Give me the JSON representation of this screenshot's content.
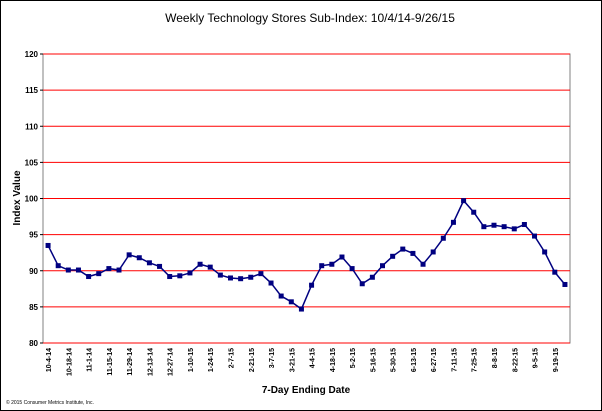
{
  "chart_data": {
    "type": "line",
    "title": "Weekly Technology Stores Sub-Index: 10/4/14-9/26/15",
    "x_label": "7-Day Ending Date",
    "y_label": "Index Value",
    "footnote": "© 2015 Consumer Metrics Institute, Inc.",
    "categories": [
      "10-4-14",
      null,
      "10-18-14",
      null,
      "11-1-14",
      null,
      "11-15-14",
      null,
      "11-29-14",
      null,
      "12-13-14",
      null,
      "12-27-14",
      null,
      "1-10-15",
      null,
      "1-24-15",
      null,
      "2-7-15",
      null,
      "2-21-15",
      null,
      "3-7-15",
      null,
      "3-21-15",
      null,
      "4-4-15",
      null,
      "4-18-15",
      null,
      "5-2-15",
      null,
      "5-16-15",
      null,
      "5-30-15",
      null,
      "6-13-15",
      null,
      "6-27-15",
      null,
      "7-11-15",
      null,
      "7-25-15",
      null,
      "8-8-15",
      null,
      "8-22-15",
      null,
      "9-5-15",
      null,
      "9-19-15",
      null
    ],
    "values": [
      93.5,
      90.7,
      90.1,
      90.1,
      89.2,
      89.6,
      90.3,
      90.1,
      92.2,
      91.8,
      91.1,
      90.6,
      89.2,
      89.3,
      89.7,
      90.9,
      90.5,
      89.4,
      89.0,
      88.9,
      89.1,
      89.6,
      88.3,
      86.5,
      85.7,
      84.7,
      88.0,
      90.7,
      90.9,
      91.9,
      90.3,
      88.2,
      89.1,
      90.7,
      92.0,
      93.0,
      92.4,
      90.9,
      92.6,
      94.5,
      96.7,
      99.7,
      98.1,
      96.1,
      96.3,
      96.1,
      95.8,
      96.4,
      94.8,
      92.6,
      89.8,
      88.1
    ],
    "color": "#000080",
    "grid_color": "#ff0000",
    "ylim": [
      80,
      120
    ],
    "yticks": [
      80,
      85,
      90,
      95,
      100,
      105,
      110,
      115,
      120
    ],
    "grid": true
  }
}
